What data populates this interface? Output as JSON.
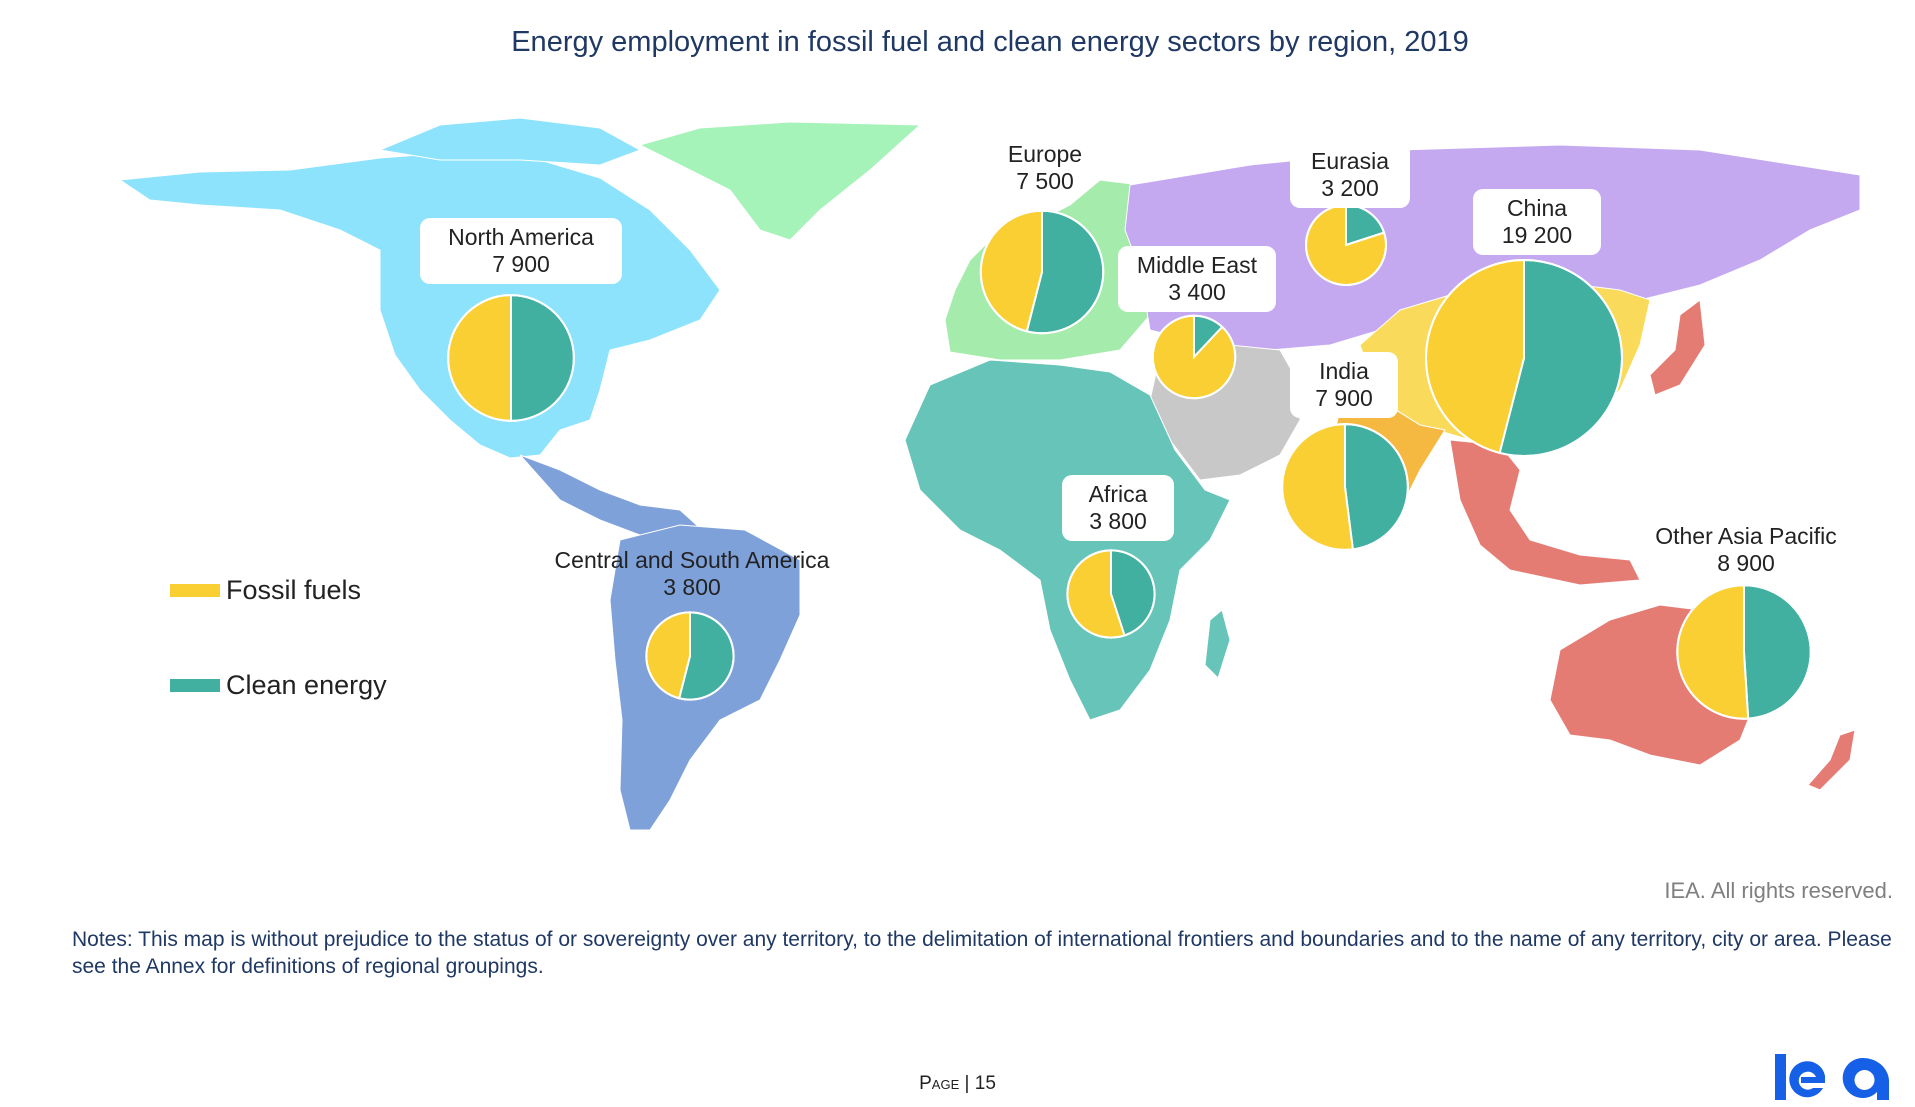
{
  "title": "Energy employment in fossil fuel and clean energy sectors by region, 2019",
  "legend": {
    "fossil_label": "Fossil fuels",
    "clean_label": "Clean energy",
    "fossil_color": "#f9cf33",
    "clean_color": "#41b0a0"
  },
  "regions": [
    {
      "name": "North America",
      "value": "7 900",
      "fossil_share": 0.5
    },
    {
      "name": "Central and South America",
      "value": "3 800",
      "fossil_share": 0.46
    },
    {
      "name": "Europe",
      "value": "7 500",
      "fossil_share": 0.46
    },
    {
      "name": "Eurasia",
      "value": "3 200",
      "fossil_share": 0.8
    },
    {
      "name": "Middle East",
      "value": "3 400",
      "fossil_share": 0.88
    },
    {
      "name": "Africa",
      "value": "3 800",
      "fossil_share": 0.55
    },
    {
      "name": "India",
      "value": "7 900",
      "fossil_share": 0.52
    },
    {
      "name": "China",
      "value": "19 200",
      "fossil_share": 0.46
    },
    {
      "name": "Other Asia Pacific",
      "value": "8 900",
      "fossil_share": 0.51
    }
  ],
  "region_colors": {
    "north_america": "#8de3fc",
    "greenland": "#a5f3b8",
    "central_south_america": "#7fa1da",
    "europe": "#a5ecac",
    "eurasia": "#c4a8f0",
    "middle_east": "#c8c8c8",
    "africa": "#66c4b8",
    "india": "#f5b941",
    "china": "#f9da5a",
    "other_asia_pacific": "#e57c74"
  },
  "rights": "IEA. All rights reserved.",
  "notes": "Notes: This map is without prejudice to the status of or sovereignty over any territory, to the delimitation of international frontiers and boundaries and to the name of any territory, city or area. Please see the Annex for definitions of regional groupings.",
  "footer": {
    "page_word": "Page",
    "page_number": "15"
  },
  "logo_text": "iea"
}
